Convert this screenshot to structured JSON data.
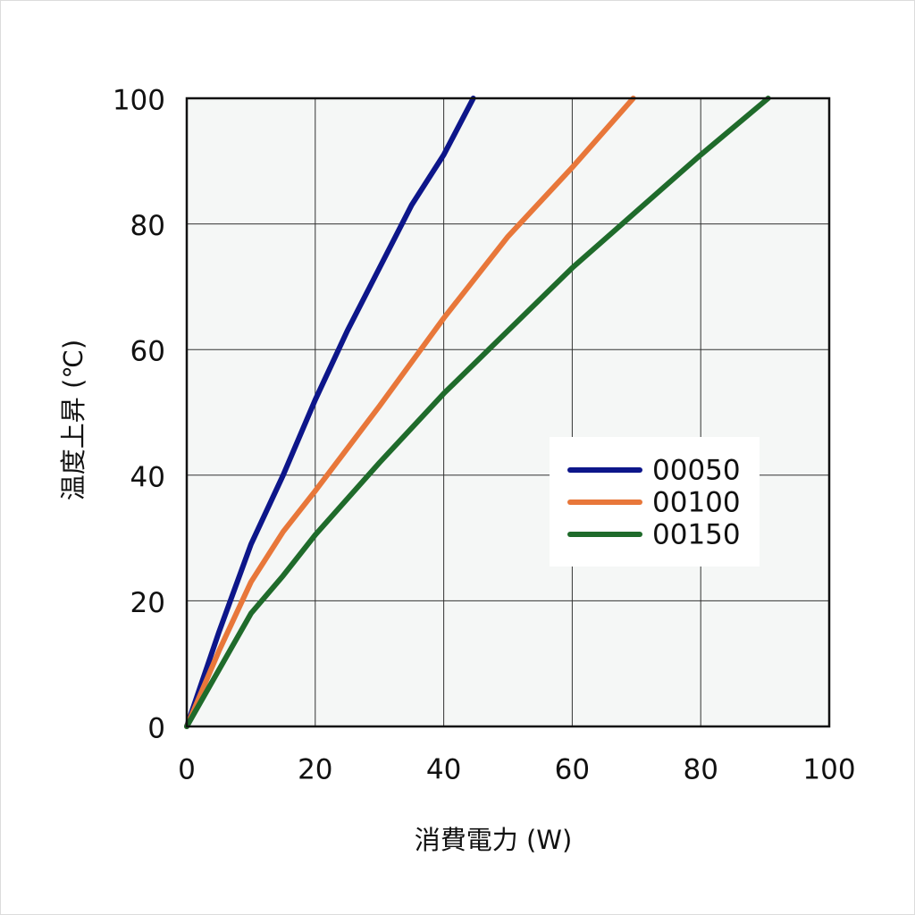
{
  "chart_data": {
    "type": "line",
    "xlabel": "消費電力 (W)",
    "ylabel": "温度上昇 (℃)",
    "xlim": [
      0,
      100
    ],
    "ylim": [
      0,
      100
    ],
    "xticks": [
      0,
      20,
      40,
      60,
      80,
      100
    ],
    "yticks": [
      0,
      20,
      40,
      60,
      80,
      100
    ],
    "grid": true,
    "legend": "right",
    "series": [
      {
        "name": "00050",
        "color": "#0d168a",
        "x": [
          0,
          5,
          10,
          15,
          20,
          25,
          30,
          35,
          40,
          44.6
        ],
        "values": [
          0,
          15,
          29,
          40,
          52,
          63,
          73,
          83,
          91,
          100
        ]
      },
      {
        "name": "00100",
        "color": "#e8773a",
        "x": [
          0,
          5,
          10,
          15,
          20,
          30,
          40,
          50,
          60,
          69.5
        ],
        "values": [
          0,
          12,
          23,
          31,
          37.5,
          51,
          65,
          78,
          89,
          100
        ]
      },
      {
        "name": "00150",
        "color": "#1f6b2b",
        "x": [
          0,
          5,
          10,
          15,
          20,
          30,
          40,
          50,
          60,
          70,
          80,
          90.5
        ],
        "values": [
          0,
          9,
          18,
          24,
          30.5,
          42,
          53,
          63,
          73,
          82,
          91,
          100
        ]
      }
    ]
  }
}
